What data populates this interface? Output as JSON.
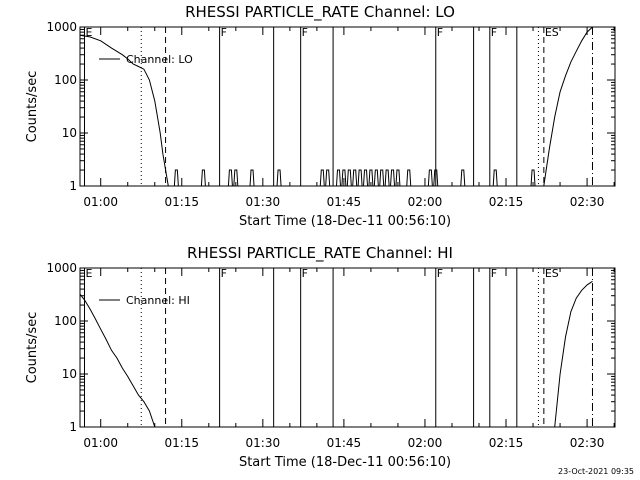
{
  "chart_data": [
    {
      "type": "line",
      "title": "RHESSI PARTICLE_RATE Channel: LO",
      "xlabel": "Start Time (18-Dec-11 00:56:10)",
      "ylabel": "Counts/sec",
      "yscale": "log",
      "ylim": [
        1,
        1000
      ],
      "x_tick_labels": [
        "01:00",
        "01:15",
        "01:30",
        "01:45",
        "02:00",
        "02:15",
        "02:30"
      ],
      "y_tick_labels": [
        "1",
        "10",
        "100",
        "1000"
      ],
      "legend": "Channel: LO",
      "legend_location": "upper-left",
      "markers": [
        {
          "time": "00:57",
          "label": "E",
          "style": "solid"
        },
        {
          "time": "01:07:30",
          "label": "",
          "style": "dotted"
        },
        {
          "time": "01:12",
          "label": "",
          "style": "dashed"
        },
        {
          "time": "01:22",
          "label": "F",
          "style": "solid"
        },
        {
          "time": "01:32",
          "label": "",
          "style": "solid"
        },
        {
          "time": "01:37",
          "label": "F",
          "style": "solid"
        },
        {
          "time": "01:43",
          "label": "",
          "style": "solid"
        },
        {
          "time": "02:02",
          "label": "F",
          "style": "solid"
        },
        {
          "time": "02:09",
          "label": "",
          "style": "solid"
        },
        {
          "time": "02:12",
          "label": "F",
          "style": "solid"
        },
        {
          "time": "02:17",
          "label": "",
          "style": "solid"
        },
        {
          "time": "02:21",
          "label": "",
          "style": "dotted"
        },
        {
          "time": "02:22",
          "label": "ES",
          "style": "dashed"
        },
        {
          "time": "02:31",
          "label": "",
          "style": "dashdot"
        }
      ],
      "series": [
        {
          "x": [
            "00:56:10",
            "00:58",
            "01:00",
            "01:02",
            "01:04",
            "01:05",
            "01:06",
            "01:07",
            "01:08",
            "01:09",
            "01:10",
            "01:11",
            "01:11:30",
            "01:12",
            "01:12:30",
            "02:22",
            "02:23",
            "02:24",
            "02:25",
            "02:26",
            "02:27",
            "02:28",
            "02:29",
            "02:30",
            "02:31"
          ],
          "y": [
            700,
            650,
            550,
            400,
            300,
            250,
            200,
            180,
            160,
            100,
            40,
            10,
            4,
            2,
            1,
            1,
            5,
            20,
            60,
            120,
            220,
            350,
            550,
            800,
            1000
          ]
        }
      ],
      "spikes": [
        "01:14",
        "01:19",
        "01:24",
        "01:25",
        "01:28",
        "01:33",
        "01:41",
        "01:42",
        "01:44",
        "01:45",
        "01:46",
        "01:47",
        "01:48",
        "01:49",
        "01:50",
        "01:51",
        "01:52",
        "01:53",
        "01:54",
        "01:55",
        "01:57",
        "02:01",
        "02:02",
        "02:07",
        "02:13",
        "02:20"
      ]
    },
    {
      "type": "line",
      "title": "RHESSI PARTICLE_RATE Channel: HI",
      "xlabel": "Start Time (18-Dec-11 00:56:10)",
      "ylabel": "Counts/sec",
      "yscale": "log",
      "ylim": [
        1,
        1000
      ],
      "x_tick_labels": [
        "01:00",
        "01:15",
        "01:30",
        "01:45",
        "02:00",
        "02:15",
        "02:30"
      ],
      "y_tick_labels": [
        "1",
        "10",
        "100",
        "1000"
      ],
      "legend": "Channel: HI",
      "legend_location": "upper-left",
      "markers": [
        {
          "time": "00:57",
          "label": "E",
          "style": "solid"
        },
        {
          "time": "01:07:30",
          "label": "",
          "style": "dotted"
        },
        {
          "time": "01:12",
          "label": "",
          "style": "dashed"
        },
        {
          "time": "01:22",
          "label": "F",
          "style": "solid"
        },
        {
          "time": "01:32",
          "label": "",
          "style": "solid"
        },
        {
          "time": "01:37",
          "label": "F",
          "style": "solid"
        },
        {
          "time": "01:43",
          "label": "",
          "style": "solid"
        },
        {
          "time": "02:02",
          "label": "F",
          "style": "solid"
        },
        {
          "time": "02:09",
          "label": "",
          "style": "solid"
        },
        {
          "time": "02:12",
          "label": "F",
          "style": "solid"
        },
        {
          "time": "02:17",
          "label": "",
          "style": "solid"
        },
        {
          "time": "02:21",
          "label": "",
          "style": "dotted"
        },
        {
          "time": "02:22",
          "label": "ES",
          "style": "dashed"
        },
        {
          "time": "02:31",
          "label": "",
          "style": "dashdot"
        }
      ],
      "series": [
        {
          "x": [
            "00:56:10",
            "00:57",
            "00:58",
            "00:59",
            "01:00",
            "01:01",
            "01:02",
            "01:03",
            "01:04",
            "01:05",
            "01:06",
            "01:07",
            "01:08",
            "01:09",
            "01:10",
            "02:24",
            "02:25",
            "02:26",
            "02:27",
            "02:28",
            "02:29",
            "02:30",
            "02:31"
          ],
          "y": [
            320,
            250,
            170,
            110,
            70,
            45,
            28,
            20,
            13,
            9,
            6,
            4,
            3,
            2,
            1,
            1,
            10,
            50,
            150,
            270,
            380,
            480,
            560
          ]
        }
      ]
    }
  ],
  "timestamp": "23-Oct-2021 09:35"
}
